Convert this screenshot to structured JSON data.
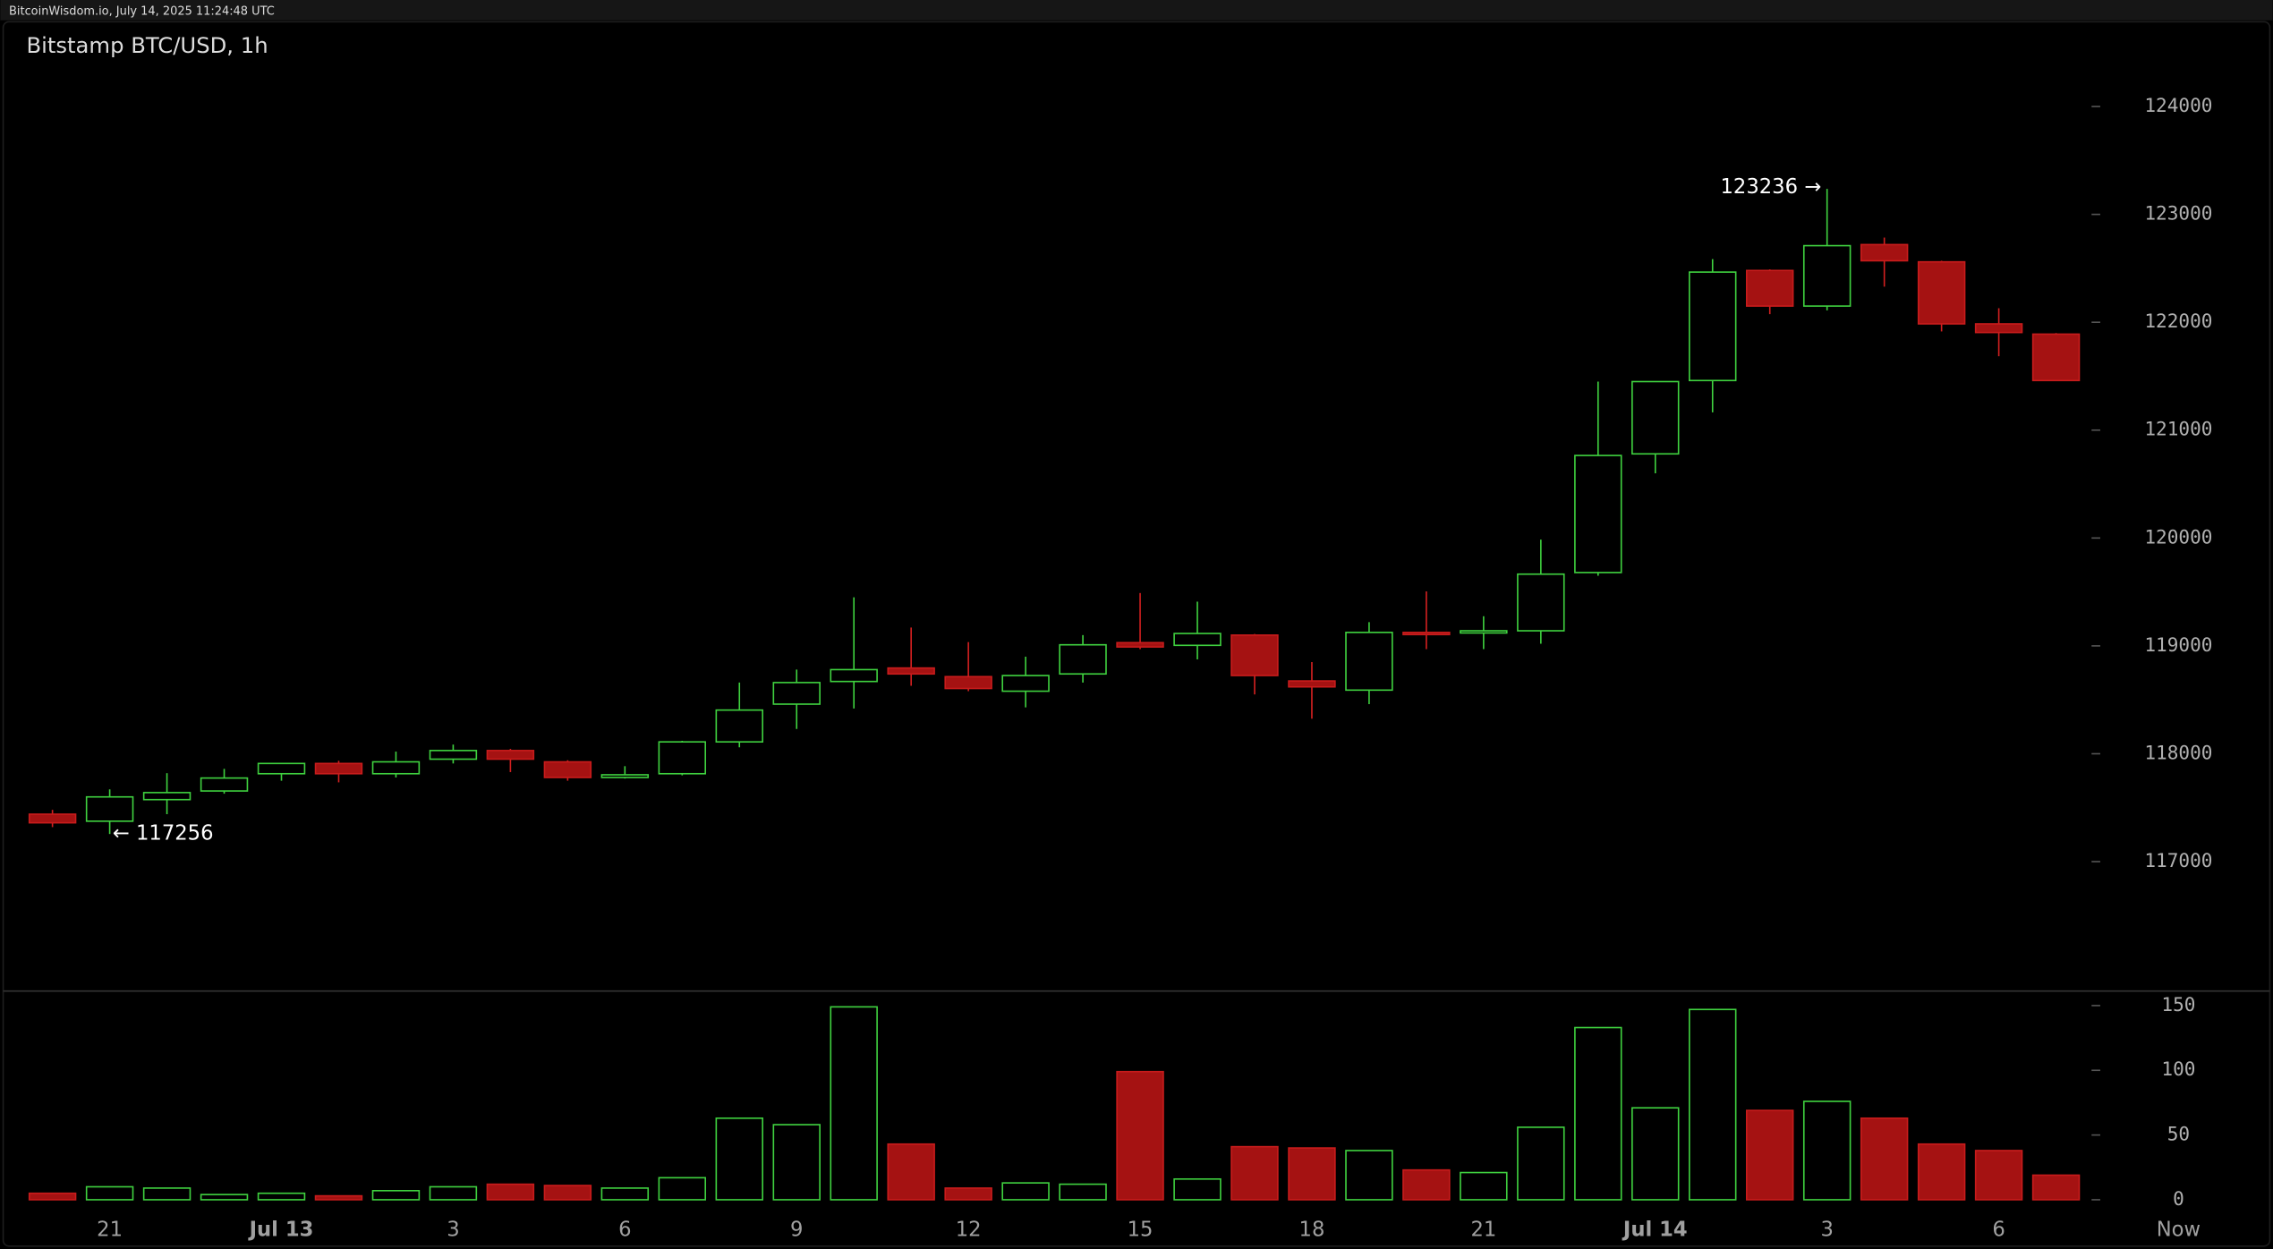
{
  "header": "BitcoinWisdom.io, July 14, 2025 11:24:48 UTC",
  "chart_data": {
    "type": "candlestick",
    "title": "Bitstamp BTC/USD, 1h",
    "categories": [
      null,
      "21",
      null,
      null,
      "Jul 13",
      null,
      null,
      "3",
      null,
      null,
      "6",
      null,
      null,
      "9",
      null,
      null,
      "12",
      null,
      null,
      "15",
      null,
      null,
      "18",
      null,
      null,
      "21",
      null,
      null,
      "Jul 14",
      null,
      null,
      "3",
      null,
      null,
      "6",
      null
    ],
    "now_label": "Now",
    "open": [
      117440,
      117375,
      117575,
      117655,
      117815,
      117910,
      117815,
      117950,
      118030,
      117925,
      117780,
      117815,
      118110,
      118460,
      118670,
      118795,
      118715,
      118580,
      118740,
      119030,
      119005,
      119100,
      118675,
      118590,
      119125,
      119125,
      119140,
      119680,
      120780,
      121460,
      122480,
      122150,
      122720,
      122560,
      121985,
      121890
    ],
    "high": [
      117480,
      117670,
      117820,
      117860,
      117910,
      117935,
      118020,
      118085,
      118045,
      117940,
      117885,
      118120,
      118660,
      118780,
      119450,
      119170,
      119035,
      118900,
      119100,
      119490,
      119410,
      119110,
      118850,
      119220,
      119505,
      119275,
      119985,
      121450,
      121450,
      122585,
      122490,
      123236,
      122785,
      122570,
      122130,
      121900
    ],
    "low": [
      117320,
      117256,
      117440,
      117630,
      117750,
      117735,
      117780,
      117910,
      117830,
      117750,
      117770,
      117800,
      118060,
      118230,
      118420,
      118630,
      118580,
      118430,
      118660,
      118970,
      118875,
      118550,
      118325,
      118460,
      118970,
      118970,
      119020,
      119650,
      120600,
      121165,
      122075,
      122110,
      122330,
      121915,
      121685,
      121460
    ],
    "close": [
      117360,
      117600,
      117640,
      117775,
      117910,
      117815,
      117925,
      118030,
      117950,
      117780,
      117805,
      118110,
      118405,
      118660,
      118780,
      118740,
      118605,
      118725,
      119010,
      118990,
      119115,
      118725,
      118620,
      119125,
      119110,
      119140,
      119665,
      120765,
      121450,
      122465,
      122150,
      122710,
      122570,
      121985,
      121905,
      121460
    ],
    "up_color": "#3fd13f",
    "down_color": "#a51212",
    "ylim": [
      115800,
      124450
    ],
    "yticks": [
      117000,
      118000,
      119000,
      120000,
      121000,
      122000,
      123000,
      124000
    ],
    "annotations": [
      {
        "text": "123236 →",
        "at": "high"
      },
      {
        "text": "← 117256",
        "at": "low"
      }
    ],
    "volume": {
      "values": [
        5,
        10,
        9,
        4,
        5,
        3,
        7,
        10,
        12,
        11,
        9,
        17,
        63,
        58,
        149,
        43,
        9,
        13,
        12,
        99,
        16,
        41,
        40,
        38,
        23,
        21,
        56,
        133,
        71,
        147,
        69,
        76,
        63,
        43,
        38,
        19
      ],
      "ylim": [
        0,
        150
      ],
      "yticks": [
        0,
        50,
        100,
        150
      ]
    }
  }
}
